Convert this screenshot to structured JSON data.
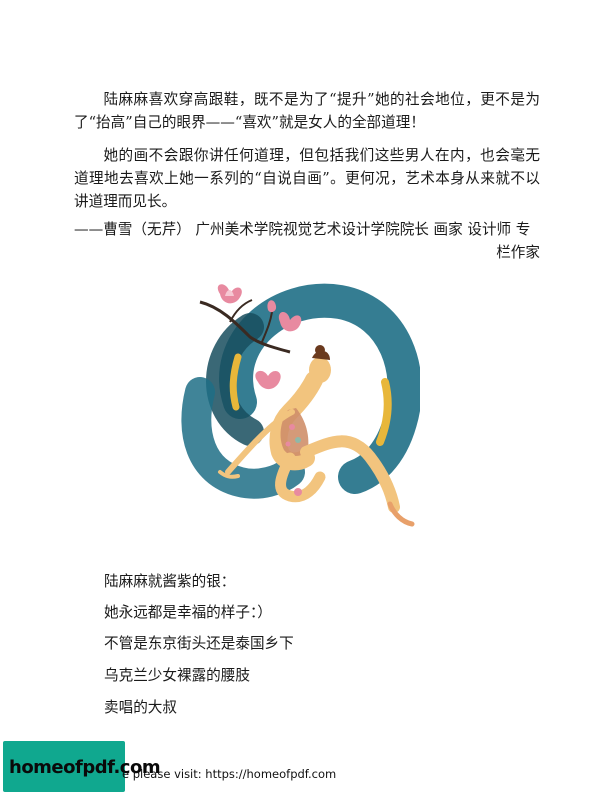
{
  "paragraphs": [
    "陆麻麻喜欢穿高跟鞋，既不是为了“提升”她的社会地位，更不是为了“抬高”自己的眼界——“喜欢”就是女人的全部道理！",
    "她的画不会跟你讲任何道理，但包括我们这些男人在内，也会毫无道理地去喜欢上她一系列的“自说自画”。更何况，艺术本身从来就不以讲道理而见长。"
  ],
  "signature": {
    "line1": "——曹雪（无芹） 广州美术学院视觉艺术设计学院院长 画家 设计师 专",
    "line2": "栏作家"
  },
  "illustration": {
    "description_icon": "dancer-with-magnolia-illustration",
    "colors": {
      "teal": "#1f6f86",
      "dark_teal": "#174d5e",
      "yellow": "#e8b73a",
      "skin": "#f2c47e",
      "pink": "#e88aa0",
      "branch": "#3a2a22"
    }
  },
  "list_lines": [
    "陆麻麻就酱紫的银：",
    "她永远都是幸福的样子：）",
    "不管是东京街头还是泰国乡下",
    "乌克兰少女裸露的腰肢",
    "卖唱的大叔"
  ],
  "watermark": {
    "logo_text": "homeofpdf.com",
    "footer_text": "e please visit: https://homeofpdf.com",
    "bg_color": "#10a88f"
  }
}
